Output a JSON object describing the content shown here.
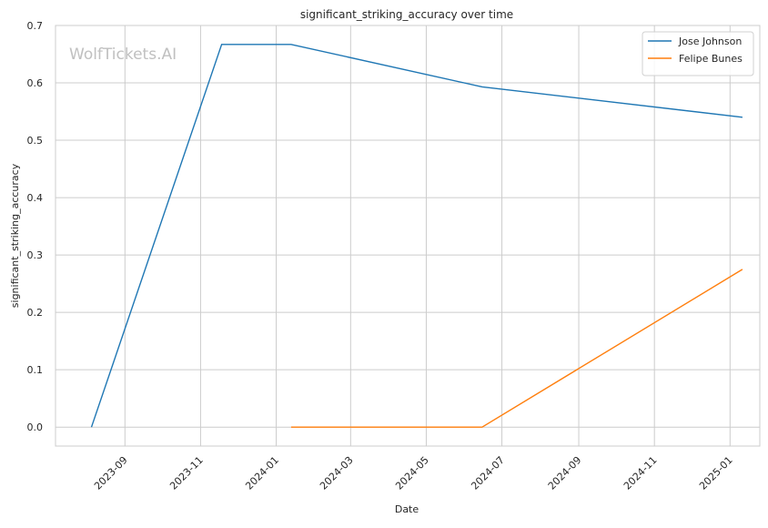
{
  "watermark": "WolfTickets.AI",
  "chart_data": {
    "type": "line",
    "title": "significant_striking_accuracy over time",
    "xlabel": "Date",
    "ylabel": "significant_striking_accuracy",
    "ylim": [
      -0.033,
      0.7
    ],
    "xlim": [
      "2023-07-07",
      "2025-01-25"
    ],
    "y_ticks": [
      0.0,
      0.1,
      0.2,
      0.3,
      0.4,
      0.5,
      0.6,
      0.7
    ],
    "y_tick_labels": [
      "0.0",
      "0.1",
      "0.2",
      "0.3",
      "0.4",
      "0.5",
      "0.6",
      "0.7"
    ],
    "x_ticks": [
      "2023-09-01",
      "2023-11-01",
      "2024-01-01",
      "2024-03-01",
      "2024-05-01",
      "2024-07-01",
      "2024-09-01",
      "2024-11-01",
      "2025-01-01"
    ],
    "x_tick_labels": [
      "2023-09",
      "2023-11",
      "2024-01",
      "2024-03",
      "2024-05",
      "2024-07",
      "2024-09",
      "2024-11",
      "2025-01"
    ],
    "grid": true,
    "legend_position": "top-right",
    "series": [
      {
        "name": "Jose Johnson",
        "color": "#1f77b4",
        "x": [
          "2023-08-05",
          "2023-11-18",
          "2024-01-13",
          "2024-06-15",
          "2025-01-11"
        ],
        "y": [
          0.0,
          0.667,
          0.667,
          0.593,
          0.54
        ]
      },
      {
        "name": "Felipe Bunes",
        "color": "#ff7f0e",
        "x": [
          "2024-01-13",
          "2024-06-15",
          "2025-01-11"
        ],
        "y": [
          0.0,
          0.0,
          0.275
        ]
      }
    ]
  }
}
